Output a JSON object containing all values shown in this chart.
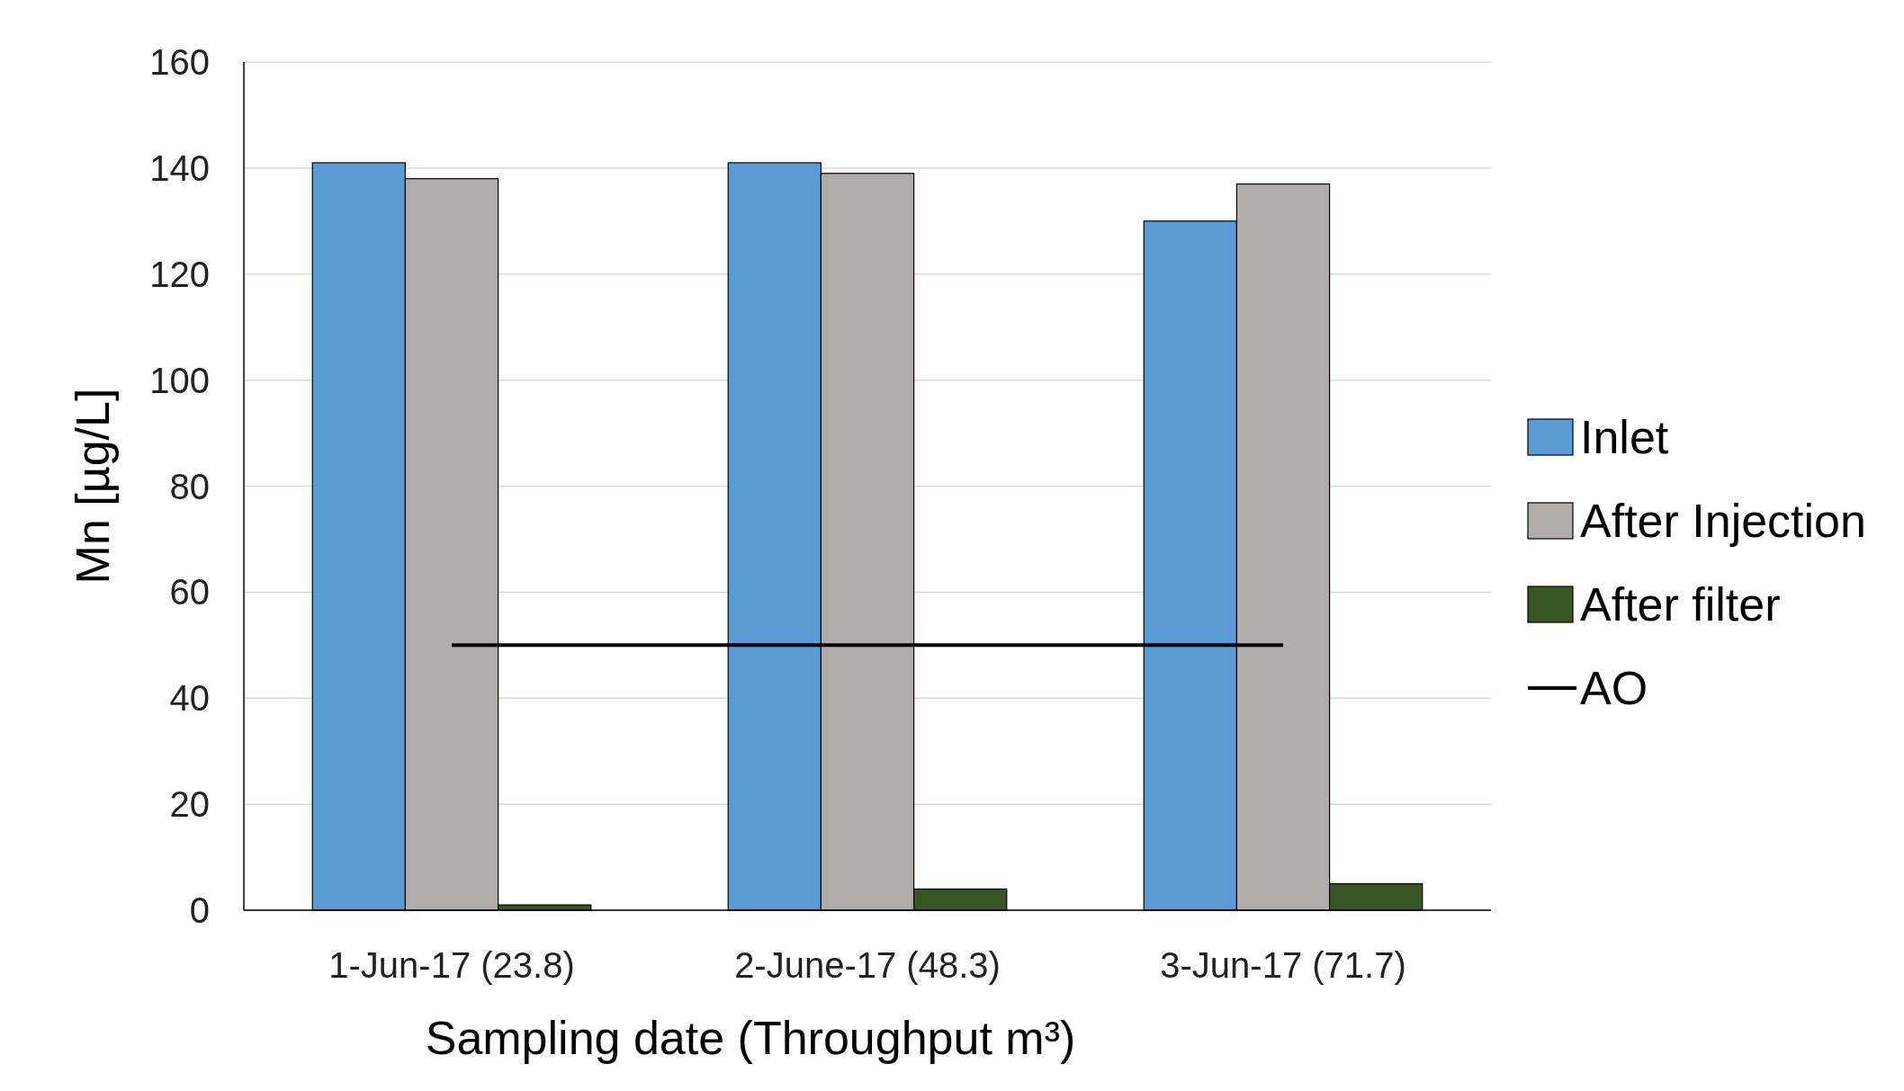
{
  "chart_data": {
    "type": "bar",
    "xlabel": "Sampling date (Throughput m³)",
    "ylabel": "Mn [µg/L]",
    "categories": [
      "1-Jun-17 (23.8)",
      "2-June-17 (48.3)",
      "3-Jun-17 (71.7)"
    ],
    "series": [
      {
        "name": "Inlet",
        "color": "#5b9bd5",
        "values": [
          141,
          141,
          130
        ]
      },
      {
        "name": "After Injection",
        "color": "#b0acab",
        "values": [
          138,
          139,
          137
        ]
      },
      {
        "name": "After filter",
        "color": "#375623",
        "values": [
          1,
          4,
          5
        ]
      },
      {
        "name": "AO",
        "type": "line",
        "color": "#000000",
        "values": [
          50,
          50,
          50
        ]
      }
    ],
    "ylim": [
      0,
      160
    ],
    "yticks": [
      0,
      20,
      40,
      60,
      80,
      100,
      120,
      140,
      160
    ],
    "grid": "y",
    "legend": "right"
  }
}
